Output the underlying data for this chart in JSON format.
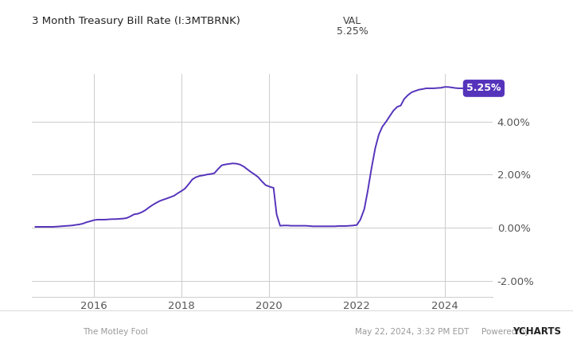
{
  "title_line1": "3 Month Treasury Bill Rate (I:3MTBRNK)",
  "title_col_header": "VAL",
  "title_val": "5.25%",
  "line_color": "#5533bb",
  "background_color": "#ffffff",
  "grid_color": "#cccccc",
  "label_text": "5.25%",
  "label_bg": "#5533bb",
  "ylabel_ticks": [
    "-2.00%",
    "0.00%",
    "2.00%",
    "4.00%"
  ],
  "ytick_vals": [
    -2.0,
    0.0,
    2.0,
    4.0
  ],
  "xlim_start": 2014.58,
  "xlim_end": 2025.1,
  "ylim_bottom": -2.6,
  "ylim_top": 5.8,
  "xtick_years": [
    2016,
    2018,
    2020,
    2022,
    2024
  ],
  "data_x": [
    2014.67,
    2014.75,
    2014.83,
    2014.92,
    2015.0,
    2015.08,
    2015.17,
    2015.25,
    2015.33,
    2015.42,
    2015.5,
    2015.58,
    2015.67,
    2015.75,
    2015.83,
    2015.92,
    2016.0,
    2016.08,
    2016.17,
    2016.25,
    2016.33,
    2016.42,
    2016.5,
    2016.58,
    2016.67,
    2016.75,
    2016.83,
    2016.92,
    2017.0,
    2017.08,
    2017.17,
    2017.25,
    2017.33,
    2017.42,
    2017.5,
    2017.58,
    2017.67,
    2017.75,
    2017.83,
    2017.92,
    2018.0,
    2018.08,
    2018.17,
    2018.25,
    2018.33,
    2018.42,
    2018.5,
    2018.58,
    2018.67,
    2018.75,
    2018.83,
    2018.92,
    2019.0,
    2019.08,
    2019.17,
    2019.25,
    2019.33,
    2019.42,
    2019.5,
    2019.58,
    2019.67,
    2019.75,
    2019.83,
    2019.92,
    2020.0,
    2020.05,
    2020.1,
    2020.17,
    2020.25,
    2020.33,
    2020.42,
    2020.5,
    2020.58,
    2020.67,
    2020.75,
    2020.83,
    2020.92,
    2021.0,
    2021.08,
    2021.17,
    2021.25,
    2021.33,
    2021.42,
    2021.5,
    2021.58,
    2021.67,
    2021.75,
    2021.83,
    2021.92,
    2022.0,
    2022.08,
    2022.17,
    2022.25,
    2022.33,
    2022.42,
    2022.5,
    2022.58,
    2022.67,
    2022.75,
    2022.83,
    2022.92,
    2023.0,
    2023.08,
    2023.17,
    2023.25,
    2023.33,
    2023.42,
    2023.5,
    2023.58,
    2023.67,
    2023.75,
    2023.83,
    2023.92,
    2024.0,
    2024.08,
    2024.17,
    2024.25,
    2024.33,
    2024.42
  ],
  "data_y": [
    0.03,
    0.03,
    0.03,
    0.03,
    0.03,
    0.03,
    0.04,
    0.05,
    0.06,
    0.07,
    0.08,
    0.1,
    0.12,
    0.15,
    0.2,
    0.24,
    0.28,
    0.3,
    0.3,
    0.3,
    0.31,
    0.32,
    0.32,
    0.33,
    0.34,
    0.36,
    0.42,
    0.5,
    0.52,
    0.57,
    0.65,
    0.75,
    0.84,
    0.93,
    1.0,
    1.05,
    1.1,
    1.15,
    1.2,
    1.3,
    1.38,
    1.47,
    1.65,
    1.82,
    1.9,
    1.95,
    1.97,
    2.0,
    2.02,
    2.05,
    2.2,
    2.35,
    2.38,
    2.4,
    2.42,
    2.41,
    2.38,
    2.3,
    2.2,
    2.1,
    2.0,
    1.9,
    1.75,
    1.6,
    1.55,
    1.52,
    1.5,
    0.5,
    0.07,
    0.08,
    0.08,
    0.07,
    0.07,
    0.07,
    0.07,
    0.07,
    0.06,
    0.05,
    0.05,
    0.05,
    0.05,
    0.05,
    0.05,
    0.05,
    0.06,
    0.06,
    0.06,
    0.07,
    0.08,
    0.1,
    0.3,
    0.7,
    1.4,
    2.2,
    3.0,
    3.5,
    3.8,
    4.0,
    4.2,
    4.4,
    4.55,
    4.6,
    4.85,
    5.0,
    5.1,
    5.15,
    5.2,
    5.22,
    5.25,
    5.25,
    5.25,
    5.26,
    5.27,
    5.3,
    5.3,
    5.28,
    5.26,
    5.25,
    5.25
  ],
  "footer_left": "The Motley Fool",
  "footer_right_date": "May 22, 2024, 3:32 PM EDT",
  "footer_right_powered": "Powered by",
  "footer_right_ycharts": "YCHARTS"
}
